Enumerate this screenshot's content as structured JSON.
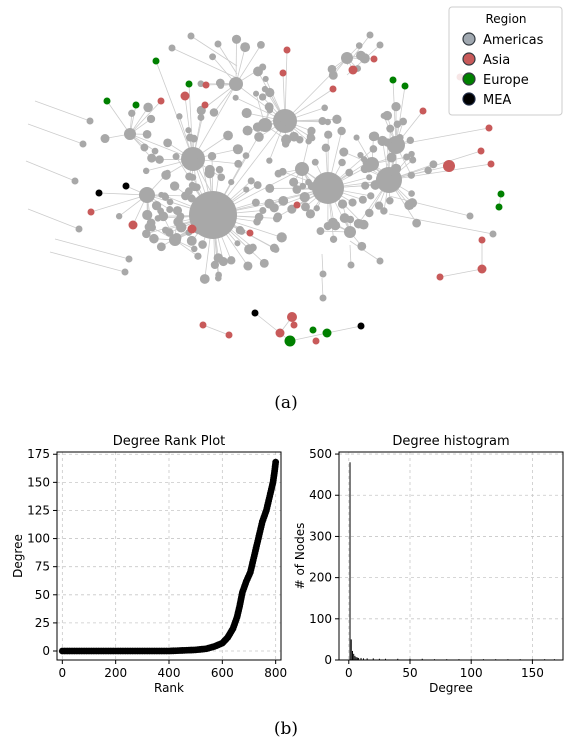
{
  "captions": {
    "a": "(a)",
    "b": "(b)"
  },
  "network": {
    "legend": {
      "title": "Region",
      "items": [
        {
          "label": "Americas",
          "color": "#a0a8b0",
          "edge": "#333a40"
        },
        {
          "label": "Asia",
          "color": "#c85a5a",
          "edge": "#333a40"
        },
        {
          "label": "Europe",
          "color": "#008000",
          "edge": "#333a40"
        },
        {
          "label": "MEA",
          "color": "#000000",
          "edge": "#1e2a44"
        }
      ]
    },
    "node_gray": "#a8a8a8",
    "edge_color": "#cccccc"
  },
  "chart_data": [
    {
      "type": "scatter",
      "title": "Degree Rank Plot",
      "xlabel": "Rank",
      "ylabel": "Degree",
      "xlim": [
        -20,
        820
      ],
      "ylim": [
        -8,
        177
      ],
      "xticks": [
        0,
        200,
        400,
        600,
        800
      ],
      "yticks": [
        0,
        25,
        50,
        75,
        100,
        125,
        150,
        175
      ],
      "grid": true,
      "color": "#000000",
      "points": [
        [
          0,
          0
        ],
        [
          100,
          0
        ],
        [
          200,
          0
        ],
        [
          300,
          0
        ],
        [
          400,
          0
        ],
        [
          450,
          0.5
        ],
        [
          500,
          1
        ],
        [
          540,
          2
        ],
        [
          570,
          4
        ],
        [
          600,
          7
        ],
        [
          620,
          12
        ],
        [
          640,
          20
        ],
        [
          655,
          30
        ],
        [
          665,
          40
        ],
        [
          675,
          52
        ],
        [
          690,
          62
        ],
        [
          705,
          70
        ],
        [
          720,
          85
        ],
        [
          735,
          100
        ],
        [
          750,
          115
        ],
        [
          765,
          125
        ],
        [
          780,
          140
        ],
        [
          790,
          150
        ],
        [
          796,
          160
        ],
        [
          800,
          168
        ]
      ]
    },
    {
      "type": "bar",
      "title": "Degree histogram",
      "xlabel": "Degree",
      "ylabel": "# of Nodes",
      "xlim": [
        -8,
        175
      ],
      "ylim": [
        0,
        505
      ],
      "xticks": [
        0,
        50,
        100,
        150
      ],
      "yticks": [
        0,
        100,
        200,
        300,
        400,
        500
      ],
      "grid": true,
      "color": "#000000",
      "bars": [
        [
          1,
          480
        ],
        [
          2,
          50
        ],
        [
          3,
          22
        ],
        [
          4,
          15
        ],
        [
          5,
          10
        ],
        [
          6,
          7
        ],
        [
          7,
          6
        ],
        [
          8,
          5
        ],
        [
          10,
          5
        ],
        [
          12,
          4
        ],
        [
          15,
          4
        ],
        [
          20,
          4
        ],
        [
          25,
          3
        ],
        [
          30,
          3
        ],
        [
          40,
          3
        ],
        [
          50,
          3
        ],
        [
          60,
          3
        ],
        [
          70,
          2
        ],
        [
          80,
          2
        ],
        [
          90,
          2
        ],
        [
          100,
          2
        ],
        [
          110,
          2
        ],
        [
          120,
          2
        ],
        [
          130,
          2
        ],
        [
          140,
          2
        ],
        [
          150,
          2
        ],
        [
          160,
          2
        ],
        [
          168,
          2
        ]
      ]
    }
  ]
}
